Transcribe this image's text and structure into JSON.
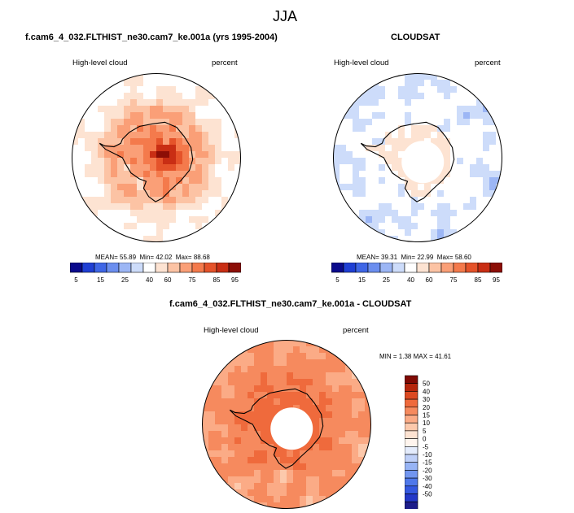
{
  "figure": {
    "title": "JJA"
  },
  "colors": {
    "abs_scale": [
      "#0a0a8c",
      "#1f3fd4",
      "#3f66e6",
      "#6b8eef",
      "#9cb6f5",
      "#cddcfa",
      "#ffffff",
      "#fde3d2",
      "#fcc3a4",
      "#fa9f77",
      "#f47a4c",
      "#e5532a",
      "#c92e14",
      "#8c0e06"
    ],
    "diff_scale": [
      "#1d1d8a",
      "#2338c8",
      "#3458e0",
      "#4f78ea",
      "#7296f0",
      "#97b4f5",
      "#bfd0f8",
      "#e4ecfc",
      "#fff5ee",
      "#fde3d2",
      "#fcc9ac",
      "#fbab86",
      "#f68a5e",
      "#ef6a3c",
      "#dc4a22",
      "#b5260c",
      "#800a04"
    ],
    "land": "#ffffff",
    "coast": "#000000"
  },
  "chart_data": [
    {
      "type": "heatmap",
      "projection": "south-polar-stereographic",
      "title": "f.cam6_4_032.FLTHIST_ne30.cam7_ke.001a (yrs 1995-2004)",
      "left_label": "High-level cloud",
      "right_label": "percent",
      "stats": {
        "mean_label": "MEAN=",
        "mean": "55.89",
        "min_label": "Min=",
        "min": "42.02",
        "max_label": "Max=",
        "max": "88.68"
      },
      "colorbar": {
        "orientation": "horizontal",
        "labels": [
          "5",
          "15",
          "25",
          "40",
          "60",
          "75",
          "85",
          "95"
        ]
      },
      "field": {
        "ocean": 38,
        "ring": 62,
        "ross_sea": 42,
        "antarctica": 68,
        "east_core": 86,
        "polar_hole": false
      }
    },
    {
      "type": "heatmap",
      "projection": "south-polar-stereographic",
      "title": "CLOUDSAT",
      "left_label": "High-level cloud",
      "right_label": "percent",
      "stats": {
        "mean_label": "MEAN=",
        "mean": "39.31",
        "min_label": "Min=",
        "min": "22.99",
        "max_label": "Max=",
        "max": "58.60"
      },
      "colorbar": {
        "orientation": "horizontal",
        "labels": [
          "5",
          "15",
          "25",
          "40",
          "60",
          "75",
          "85",
          "95"
        ]
      },
      "field": {
        "ocean": 30,
        "ring": 34,
        "ross_sea": 28,
        "antarctica": 42,
        "east_core": 45,
        "polar_hole": true
      }
    },
    {
      "type": "heatmap",
      "projection": "south-polar-stereographic",
      "title": "f.cam6_4_032.FLTHIST_ne30.cam7_ke.001a - CLOUDSAT",
      "left_label": "High-level cloud",
      "right_label": "percent",
      "stats": {
        "min_label": "MIN =",
        "min": "1.38",
        "max_label": "MAX =",
        "max": "41.61"
      },
      "colorbar": {
        "orientation": "vertical",
        "labels": [
          "50",
          "40",
          "30",
          "20",
          "15",
          "10",
          "5",
          "0",
          "-5",
          "-10",
          "-15",
          "-20",
          "-30",
          "-40",
          "-50"
        ]
      },
      "field": {
        "ocean": 20,
        "ring": 30,
        "ross_sea": 14,
        "antarctica": 33,
        "east_core": 38,
        "polar_hole": true
      }
    }
  ]
}
